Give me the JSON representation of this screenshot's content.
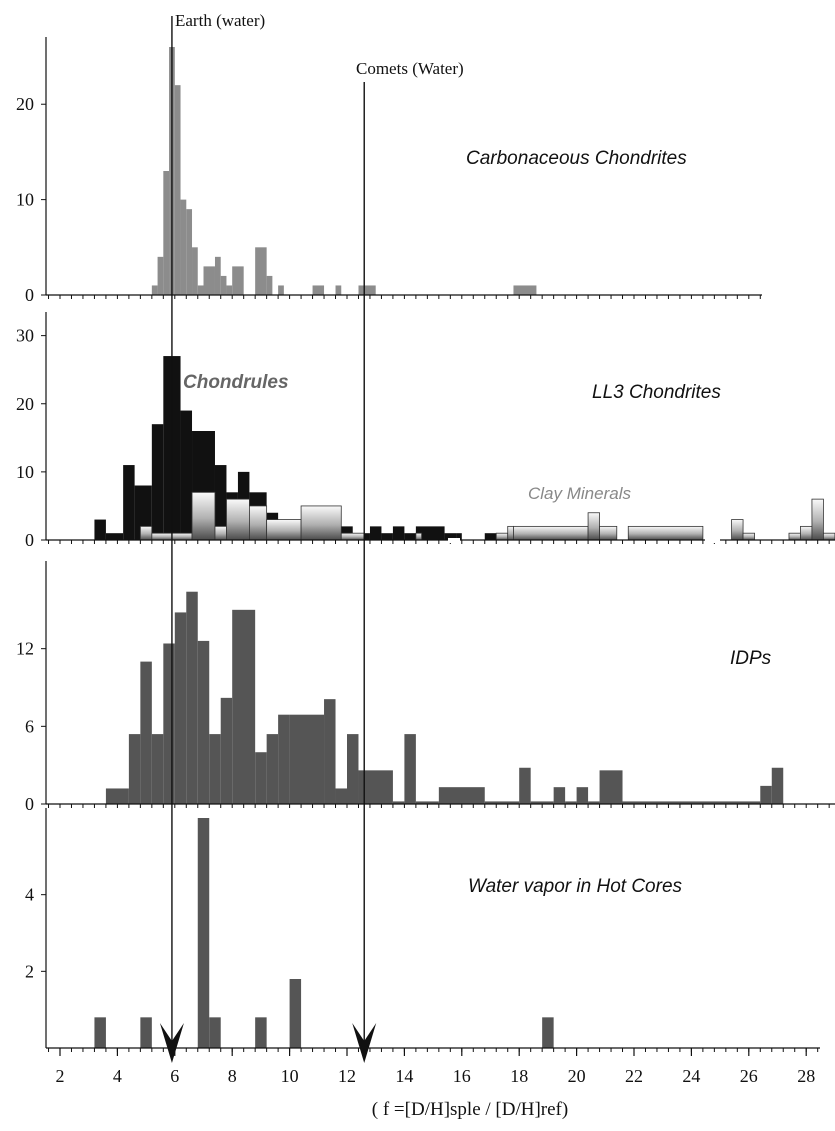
{
  "chart_data": [
    {
      "type": "bar",
      "label": "Carbonaceous Chondrites",
      "ylim": [
        0,
        26
      ],
      "yticks": [
        0,
        10,
        20
      ],
      "colors": {
        "fill": "#8c8c8c"
      },
      "bars": [
        {
          "x0": 5.2,
          "x1": 5.4,
          "v": 1
        },
        {
          "x0": 5.4,
          "x1": 5.6,
          "v": 4
        },
        {
          "x0": 5.6,
          "x1": 5.8,
          "v": 13
        },
        {
          "x0": 5.8,
          "x1": 6.0,
          "v": 26
        },
        {
          "x0": 6.0,
          "x1": 6.2,
          "v": 22
        },
        {
          "x0": 6.2,
          "x1": 6.4,
          "v": 10
        },
        {
          "x0": 6.4,
          "x1": 6.6,
          "v": 9
        },
        {
          "x0": 6.6,
          "x1": 6.8,
          "v": 5
        },
        {
          "x0": 6.8,
          "x1": 7.0,
          "v": 1
        },
        {
          "x0": 7.0,
          "x1": 7.4,
          "v": 3
        },
        {
          "x0": 7.4,
          "x1": 7.6,
          "v": 4
        },
        {
          "x0": 7.6,
          "x1": 7.8,
          "v": 2
        },
        {
          "x0": 7.8,
          "x1": 8.0,
          "v": 1
        },
        {
          "x0": 8.0,
          "x1": 8.4,
          "v": 3
        },
        {
          "x0": 8.8,
          "x1": 9.2,
          "v": 5
        },
        {
          "x0": 9.2,
          "x1": 9.4,
          "v": 2
        },
        {
          "x0": 9.6,
          "x1": 9.8,
          "v": 1
        },
        {
          "x0": 10.8,
          "x1": 11.2,
          "v": 1
        },
        {
          "x0": 11.6,
          "x1": 11.8,
          "v": 1
        },
        {
          "x0": 12.4,
          "x1": 13.0,
          "v": 1
        },
        {
          "x0": 17.8,
          "x1": 18.6,
          "v": 1
        }
      ]
    },
    {
      "type": "bar",
      "label": "LL3 Chondrites",
      "ylim": [
        0,
        32
      ],
      "yticks": [
        0,
        10,
        20,
        30
      ],
      "series": [
        {
          "name": "Chondrules",
          "color": "#111111",
          "bars": [
            {
              "x0": 3.2,
              "x1": 3.6,
              "v": 3
            },
            {
              "x0": 3.6,
              "x1": 4.2,
              "v": 1
            },
            {
              "x0": 4.2,
              "x1": 4.6,
              "v": 11
            },
            {
              "x0": 4.6,
              "x1": 5.2,
              "v": 8
            },
            {
              "x0": 5.2,
              "x1": 5.6,
              "v": 17
            },
            {
              "x0": 5.6,
              "x1": 6.2,
              "v": 27
            },
            {
              "x0": 6.2,
              "x1": 6.6,
              "v": 19
            },
            {
              "x0": 6.6,
              "x1": 7.4,
              "v": 16
            },
            {
              "x0": 7.4,
              "x1": 7.8,
              "v": 11
            },
            {
              "x0": 7.8,
              "x1": 8.2,
              "v": 7
            },
            {
              "x0": 8.2,
              "x1": 8.6,
              "v": 10
            },
            {
              "x0": 8.6,
              "x1": 9.2,
              "v": 7
            },
            {
              "x0": 9.2,
              "x1": 9.6,
              "v": 4
            },
            {
              "x0": 9.6,
              "x1": 10.4,
              "v": 3
            },
            {
              "x0": 10.4,
              "x1": 12.2,
              "v": 2
            },
            {
              "x0": 12.2,
              "x1": 12.8,
              "v": 1
            },
            {
              "x0": 12.8,
              "x1": 13.2,
              "v": 2
            },
            {
              "x0": 13.2,
              "x1": 13.6,
              "v": 1
            },
            {
              "x0": 13.6,
              "x1": 14.0,
              "v": 2
            },
            {
              "x0": 14.0,
              "x1": 14.4,
              "v": 1
            },
            {
              "x0": 14.4,
              "x1": 15.4,
              "v": 2
            },
            {
              "x0": 15.4,
              "x1": 15.8,
              "v": 1
            },
            {
              "x0": 15.8,
              "x1": 16.0,
              "v": 1
            },
            {
              "x0": 16.8,
              "x1": 17.2,
              "v": 1
            },
            {
              "x0": 17.6,
              "x1": 17.8,
              "v": 1
            }
          ]
        },
        {
          "name": "Clay Minerals",
          "color": "#7a7a7a",
          "bars": [
            {
              "x0": 4.8,
              "x1": 5.2,
              "v": 2
            },
            {
              "x0": 5.2,
              "x1": 6.6,
              "v": 1
            },
            {
              "x0": 6.6,
              "x1": 7.4,
              "v": 7
            },
            {
              "x0": 7.4,
              "x1": 7.8,
              "v": 2
            },
            {
              "x0": 7.8,
              "x1": 8.6,
              "v": 6
            },
            {
              "x0": 8.6,
              "x1": 9.2,
              "v": 5
            },
            {
              "x0": 9.2,
              "x1": 10.4,
              "v": 3
            },
            {
              "x0": 10.4,
              "x1": 11.8,
              "v": 5
            },
            {
              "x0": 11.8,
              "x1": 12.6,
              "v": 1
            },
            {
              "x0": 14.4,
              "x1": 14.6,
              "v": 1
            },
            {
              "x0": 17.2,
              "x1": 17.6,
              "v": 1
            },
            {
              "x0": 17.6,
              "x1": 17.8,
              "v": 2
            },
            {
              "x0": 17.8,
              "x1": 20.4,
              "v": 2
            },
            {
              "x0": 20.4,
              "x1": 20.8,
              "v": 4
            },
            {
              "x0": 20.8,
              "x1": 21.4,
              "v": 2
            },
            {
              "x0": 21.8,
              "x1": 24.4,
              "v": 2
            },
            {
              "x0": 25.4,
              "x1": 25.8,
              "v": 3
            },
            {
              "x0": 25.8,
              "x1": 26.2,
              "v": 1
            },
            {
              "x0": 27.4,
              "x1": 27.8,
              "v": 1
            },
            {
              "x0": 27.8,
              "x1": 28.2,
              "v": 2
            },
            {
              "x0": 28.2,
              "x1": 28.6,
              "v": 6
            },
            {
              "x0": 28.6,
              "x1": 29.0,
              "v": 1
            }
          ]
        }
      ]
    },
    {
      "type": "bar",
      "label": "IDPs",
      "ylim": [
        0,
        18
      ],
      "yticks": [
        0,
        6,
        12
      ],
      "colors": {
        "fill": "#555555"
      },
      "bars": [
        {
          "x0": 3.6,
          "x1": 4.4,
          "v": 1.2
        },
        {
          "x0": 4.4,
          "x1": 4.8,
          "v": 5.4
        },
        {
          "x0": 4.8,
          "x1": 5.2,
          "v": 11
        },
        {
          "x0": 5.2,
          "x1": 5.6,
          "v": 5.4
        },
        {
          "x0": 5.6,
          "x1": 6.0,
          "v": 12.4
        },
        {
          "x0": 6.0,
          "x1": 6.4,
          "v": 14.8
        },
        {
          "x0": 6.4,
          "x1": 6.8,
          "v": 16.4
        },
        {
          "x0": 6.8,
          "x1": 7.2,
          "v": 12.6
        },
        {
          "x0": 7.2,
          "x1": 7.6,
          "v": 5.4
        },
        {
          "x0": 7.6,
          "x1": 8.0,
          "v": 8.2
        },
        {
          "x0": 8.0,
          "x1": 8.8,
          "v": 15
        },
        {
          "x0": 8.8,
          "x1": 9.2,
          "v": 4
        },
        {
          "x0": 9.2,
          "x1": 9.6,
          "v": 5.4
        },
        {
          "x0": 9.6,
          "x1": 10.0,
          "v": 6.9
        },
        {
          "x0": 10.0,
          "x1": 11.2,
          "v": 6.9
        },
        {
          "x0": 11.2,
          "x1": 11.6,
          "v": 8.1
        },
        {
          "x0": 11.6,
          "x1": 12.0,
          "v": 1.2
        },
        {
          "x0": 12.0,
          "x1": 12.4,
          "v": 5.4
        },
        {
          "x0": 12.4,
          "x1": 13.6,
          "v": 2.6
        },
        {
          "x0": 13.6,
          "x1": 14.0,
          "v": 0.2
        },
        {
          "x0": 14.0,
          "x1": 14.4,
          "v": 5.4
        },
        {
          "x0": 14.4,
          "x1": 15.2,
          "v": 0.2
        },
        {
          "x0": 15.2,
          "x1": 16.8,
          "v": 1.3
        },
        {
          "x0": 16.8,
          "x1": 18.0,
          "v": 0.2
        },
        {
          "x0": 18.0,
          "x1": 18.4,
          "v": 2.8
        },
        {
          "x0": 18.4,
          "x1": 19.2,
          "v": 0.2
        },
        {
          "x0": 19.2,
          "x1": 19.6,
          "v": 1.3
        },
        {
          "x0": 19.6,
          "x1": 20.0,
          "v": 0.2
        },
        {
          "x0": 20.0,
          "x1": 20.4,
          "v": 1.3
        },
        {
          "x0": 20.4,
          "x1": 20.8,
          "v": 0.2
        },
        {
          "x0": 20.8,
          "x1": 21.6,
          "v": 2.6
        },
        {
          "x0": 21.6,
          "x1": 26.4,
          "v": 0.2
        },
        {
          "x0": 26.4,
          "x1": 26.8,
          "v": 1.4
        },
        {
          "x0": 26.8,
          "x1": 27.2,
          "v": 2.8
        }
      ]
    },
    {
      "type": "bar",
      "label": "Water vapor in Hot Cores",
      "ylim": [
        0,
        6
      ],
      "yticks": [
        2,
        4
      ],
      "colors": {
        "fill": "#555555"
      },
      "bars": [
        {
          "x0": 3.2,
          "x1": 3.6,
          "v": 0.8
        },
        {
          "x0": 4.8,
          "x1": 5.2,
          "v": 0.8
        },
        {
          "x0": 6.8,
          "x1": 7.2,
          "v": 6
        },
        {
          "x0": 7.2,
          "x1": 7.6,
          "v": 0.8
        },
        {
          "x0": 8.8,
          "x1": 9.2,
          "v": 0.8
        },
        {
          "x0": 10.0,
          "x1": 10.4,
          "v": 1.8
        },
        {
          "x0": 18.8,
          "x1": 19.2,
          "v": 0.8
        }
      ]
    }
  ],
  "x_axis": {
    "ticks": [
      2,
      4,
      6,
      8,
      10,
      12,
      14,
      16,
      18,
      20,
      22,
      24,
      26,
      28
    ],
    "title": "( f =[D/H]sple / [D/H]ref)"
  },
  "markers": [
    {
      "label": "Earth (water)",
      "x": 5.9
    },
    {
      "label": "Comets (Water)",
      "x": 12.6
    }
  ]
}
